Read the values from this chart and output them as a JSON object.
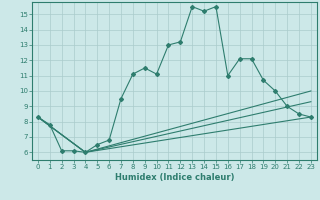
{
  "xlabel": "Humidex (Indice chaleur)",
  "background_color": "#cce8e8",
  "grid_color": "#aacccc",
  "line_color": "#2e7d6e",
  "xlim": [
    -0.5,
    23.5
  ],
  "ylim": [
    5.5,
    15.8
  ],
  "yticks": [
    6,
    7,
    8,
    9,
    10,
    11,
    12,
    13,
    14,
    15
  ],
  "xticks": [
    0,
    1,
    2,
    3,
    4,
    5,
    6,
    7,
    8,
    9,
    10,
    11,
    12,
    13,
    14,
    15,
    16,
    17,
    18,
    19,
    20,
    21,
    22,
    23
  ],
  "series0_x": [
    0,
    1,
    2,
    3,
    4,
    5,
    6,
    7,
    8,
    9,
    10,
    11,
    12,
    13,
    14,
    15,
    16,
    17,
    18,
    19,
    20,
    21,
    22,
    23
  ],
  "series0_y": [
    8.3,
    7.8,
    6.1,
    6.1,
    6.0,
    6.5,
    6.8,
    9.5,
    11.1,
    11.5,
    11.1,
    13.0,
    13.2,
    15.5,
    15.2,
    15.5,
    11.0,
    12.1,
    12.1,
    10.7,
    10.0,
    9.0,
    8.5,
    8.3
  ],
  "series1_x": [
    0,
    4,
    23
  ],
  "series1_y": [
    8.3,
    6.0,
    8.3
  ],
  "series2_x": [
    0,
    4,
    23
  ],
  "series2_y": [
    8.3,
    6.0,
    9.3
  ],
  "series3_x": [
    0,
    4,
    23
  ],
  "series3_y": [
    8.3,
    6.0,
    10.0
  ]
}
